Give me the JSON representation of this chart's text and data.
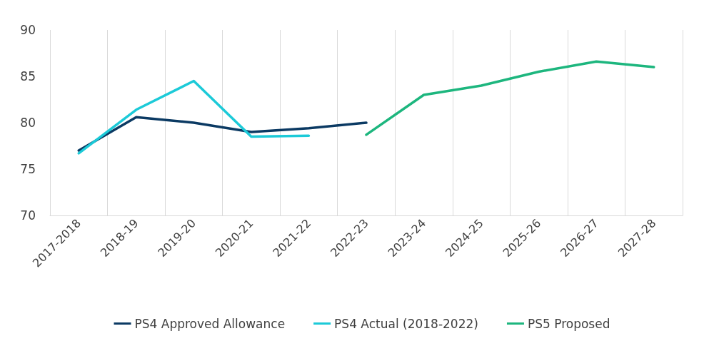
{
  "chart_data": {
    "type": "line",
    "categories": [
      "2017-2018",
      "2018-19",
      "2019-20",
      "2020-21",
      "2021-22",
      "2022-23",
      "2023-24",
      "2024-25",
      "2025-26",
      "2026-27",
      "2027-28"
    ],
    "series": [
      {
        "name": "PS4 Approved Allowance",
        "color": "#0b3a63",
        "values": [
          77.0,
          80.6,
          80.0,
          79.0,
          79.4,
          80.0,
          null,
          null,
          null,
          null,
          null
        ]
      },
      {
        "name": "PS4 Actual (2018-2022)",
        "color": "#1ccad8",
        "values": [
          76.7,
          81.4,
          84.5,
          78.5,
          78.6,
          null,
          null,
          null,
          null,
          null,
          null
        ]
      },
      {
        "name": "PS5 Proposed",
        "color": "#1db67e",
        "values": [
          null,
          null,
          null,
          null,
          null,
          78.7,
          83.0,
          84.0,
          85.5,
          86.6,
          86.0
        ]
      }
    ],
    "ylim": [
      70,
      90
    ],
    "yticks": [
      70,
      75,
      80,
      85,
      90
    ],
    "grid": "x",
    "legend": "bottom",
    "marker": "none",
    "line_style": "solid"
  }
}
